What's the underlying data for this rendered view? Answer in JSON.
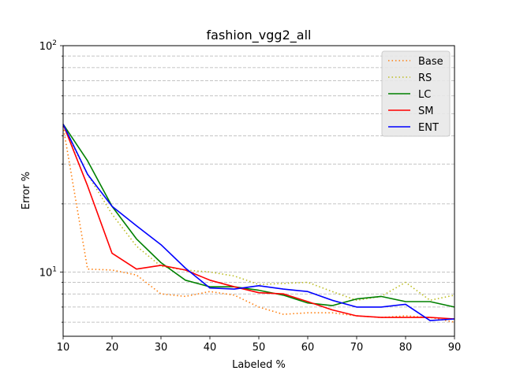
{
  "chart_data": {
    "type": "line",
    "title": "fashion_vgg2_all",
    "xlabel": "Labeled %",
    "ylabel": "Error %",
    "xlim": [
      10,
      90
    ],
    "ylim": [
      5.2,
      100
    ],
    "yscale": "log",
    "grid": "horizontal dashed (major and minor)",
    "legend_position": "top-right",
    "x_ticks": [
      "10",
      "20",
      "30",
      "40",
      "50",
      "60",
      "70",
      "80",
      "90"
    ],
    "x_tick_values": [
      10,
      20,
      30,
      40,
      50,
      60,
      70,
      80,
      90
    ],
    "y_ticks": [
      {
        "value": 10,
        "base": "10",
        "exp": "1"
      },
      {
        "value": 100,
        "base": "10",
        "exp": "2"
      }
    ],
    "series": [
      {
        "name": "Base",
        "color": "#ff7f0e",
        "style": "dotted",
        "x": [
          10,
          15,
          20,
          25,
          30,
          35,
          40,
          45,
          50,
          55,
          60,
          65,
          70,
          75,
          80,
          85,
          90
        ],
        "y": [
          44,
          10.3,
          10.2,
          9.7,
          8.0,
          7.8,
          8.2,
          7.9,
          7.0,
          6.5,
          6.6,
          6.6,
          6.4,
          6.3,
          6.4,
          6.3,
          6.0
        ]
      },
      {
        "name": "RS",
        "color": "#bcbd22",
        "style": "dotted",
        "x": [
          10,
          15,
          20,
          25,
          30,
          35,
          40,
          45,
          50,
          55,
          60,
          65,
          70,
          75,
          80,
          85,
          90
        ],
        "y": [
          44,
          27,
          18,
          13,
          10.6,
          10.2,
          10.0,
          9.6,
          8.8,
          8.9,
          9.0,
          8.2,
          7.5,
          7.8,
          9.0,
          7.5,
          7.9
        ]
      },
      {
        "name": "LC",
        "color": "#008000",
        "style": "solid",
        "x": [
          10,
          15,
          20,
          25,
          30,
          35,
          40,
          45,
          50,
          55,
          60,
          65,
          70,
          75,
          80,
          85,
          90
        ],
        "y": [
          45,
          31,
          19.5,
          14,
          11,
          9.2,
          8.6,
          8.6,
          8.3,
          7.9,
          7.3,
          7.1,
          7.6,
          7.8,
          7.4,
          7.4,
          7.0
        ]
      },
      {
        "name": "SM",
        "color": "#ff0000",
        "style": "solid",
        "x": [
          10,
          15,
          20,
          25,
          30,
          35,
          40,
          45,
          50,
          55,
          60,
          65,
          70,
          75,
          80,
          85,
          90
        ],
        "y": [
          45,
          24,
          12.1,
          10.3,
          10.7,
          10.2,
          9.2,
          8.6,
          8.1,
          8.0,
          7.4,
          6.8,
          6.4,
          6.3,
          6.3,
          6.3,
          6.2
        ]
      },
      {
        "name": "ENT",
        "color": "#0000ff",
        "style": "solid",
        "x": [
          10,
          15,
          20,
          25,
          30,
          35,
          40,
          45,
          50,
          55,
          60,
          65,
          70,
          75,
          80,
          85,
          90
        ],
        "y": [
          45,
          27,
          19.5,
          16,
          13.2,
          10.4,
          8.5,
          8.4,
          8.7,
          8.4,
          8.2,
          7.5,
          7.0,
          7.0,
          7.2,
          6.1,
          6.2
        ]
      }
    ]
  }
}
